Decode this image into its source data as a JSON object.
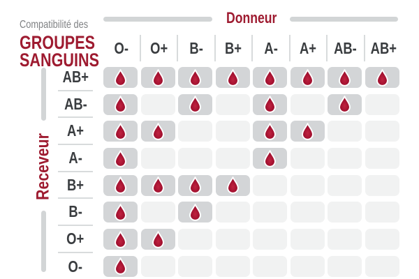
{
  "title": {
    "kicker": "Compatibilité des",
    "main_line1": "GROUPES",
    "main_line2": "SANGUINS"
  },
  "axes": {
    "donor_label": "Donneur",
    "receiver_label": "Receveur"
  },
  "chart_data": {
    "type": "heatmap",
    "title": "Compatibilité des groupes sanguins",
    "x_axis_label": "Donneur",
    "y_axis_label": "Receveur",
    "columns": [
      "O-",
      "O+",
      "B-",
      "B+",
      "A-",
      "A+",
      "AB-",
      "AB+"
    ],
    "rows": [
      "AB+",
      "AB-",
      "A+",
      "A-",
      "B+",
      "B-",
      "O+",
      "O-"
    ],
    "matrix": [
      [
        1,
        1,
        1,
        1,
        1,
        1,
        1,
        1
      ],
      [
        1,
        0,
        1,
        0,
        1,
        0,
        1,
        0
      ],
      [
        1,
        1,
        0,
        0,
        1,
        1,
        0,
        0
      ],
      [
        1,
        0,
        0,
        0,
        1,
        0,
        0,
        0
      ],
      [
        1,
        1,
        1,
        1,
        0,
        0,
        0,
        0
      ],
      [
        1,
        0,
        1,
        0,
        0,
        0,
        0,
        0
      ],
      [
        1,
        1,
        0,
        0,
        0,
        0,
        0,
        0
      ],
      [
        1,
        0,
        0,
        0,
        0,
        0,
        0,
        0
      ]
    ],
    "cell_marker_icon": "blood-drop-icon",
    "grid_on": false,
    "legend_position": "none"
  },
  "colors": {
    "accent_red": "#9e1b30",
    "label_dark": "#3a3d40",
    "kicker_gray": "#7f8183",
    "rule_gray": "#d2d5d6",
    "divider_gray": "#d8dbdc",
    "cell_filled": "#d3d5d7",
    "cell_empty": "#f1f2f2",
    "drop_light": "#c02340",
    "drop_mid": "#a31130",
    "drop_dark": "#8c0c25",
    "drop_stroke": "#ffffff"
  }
}
